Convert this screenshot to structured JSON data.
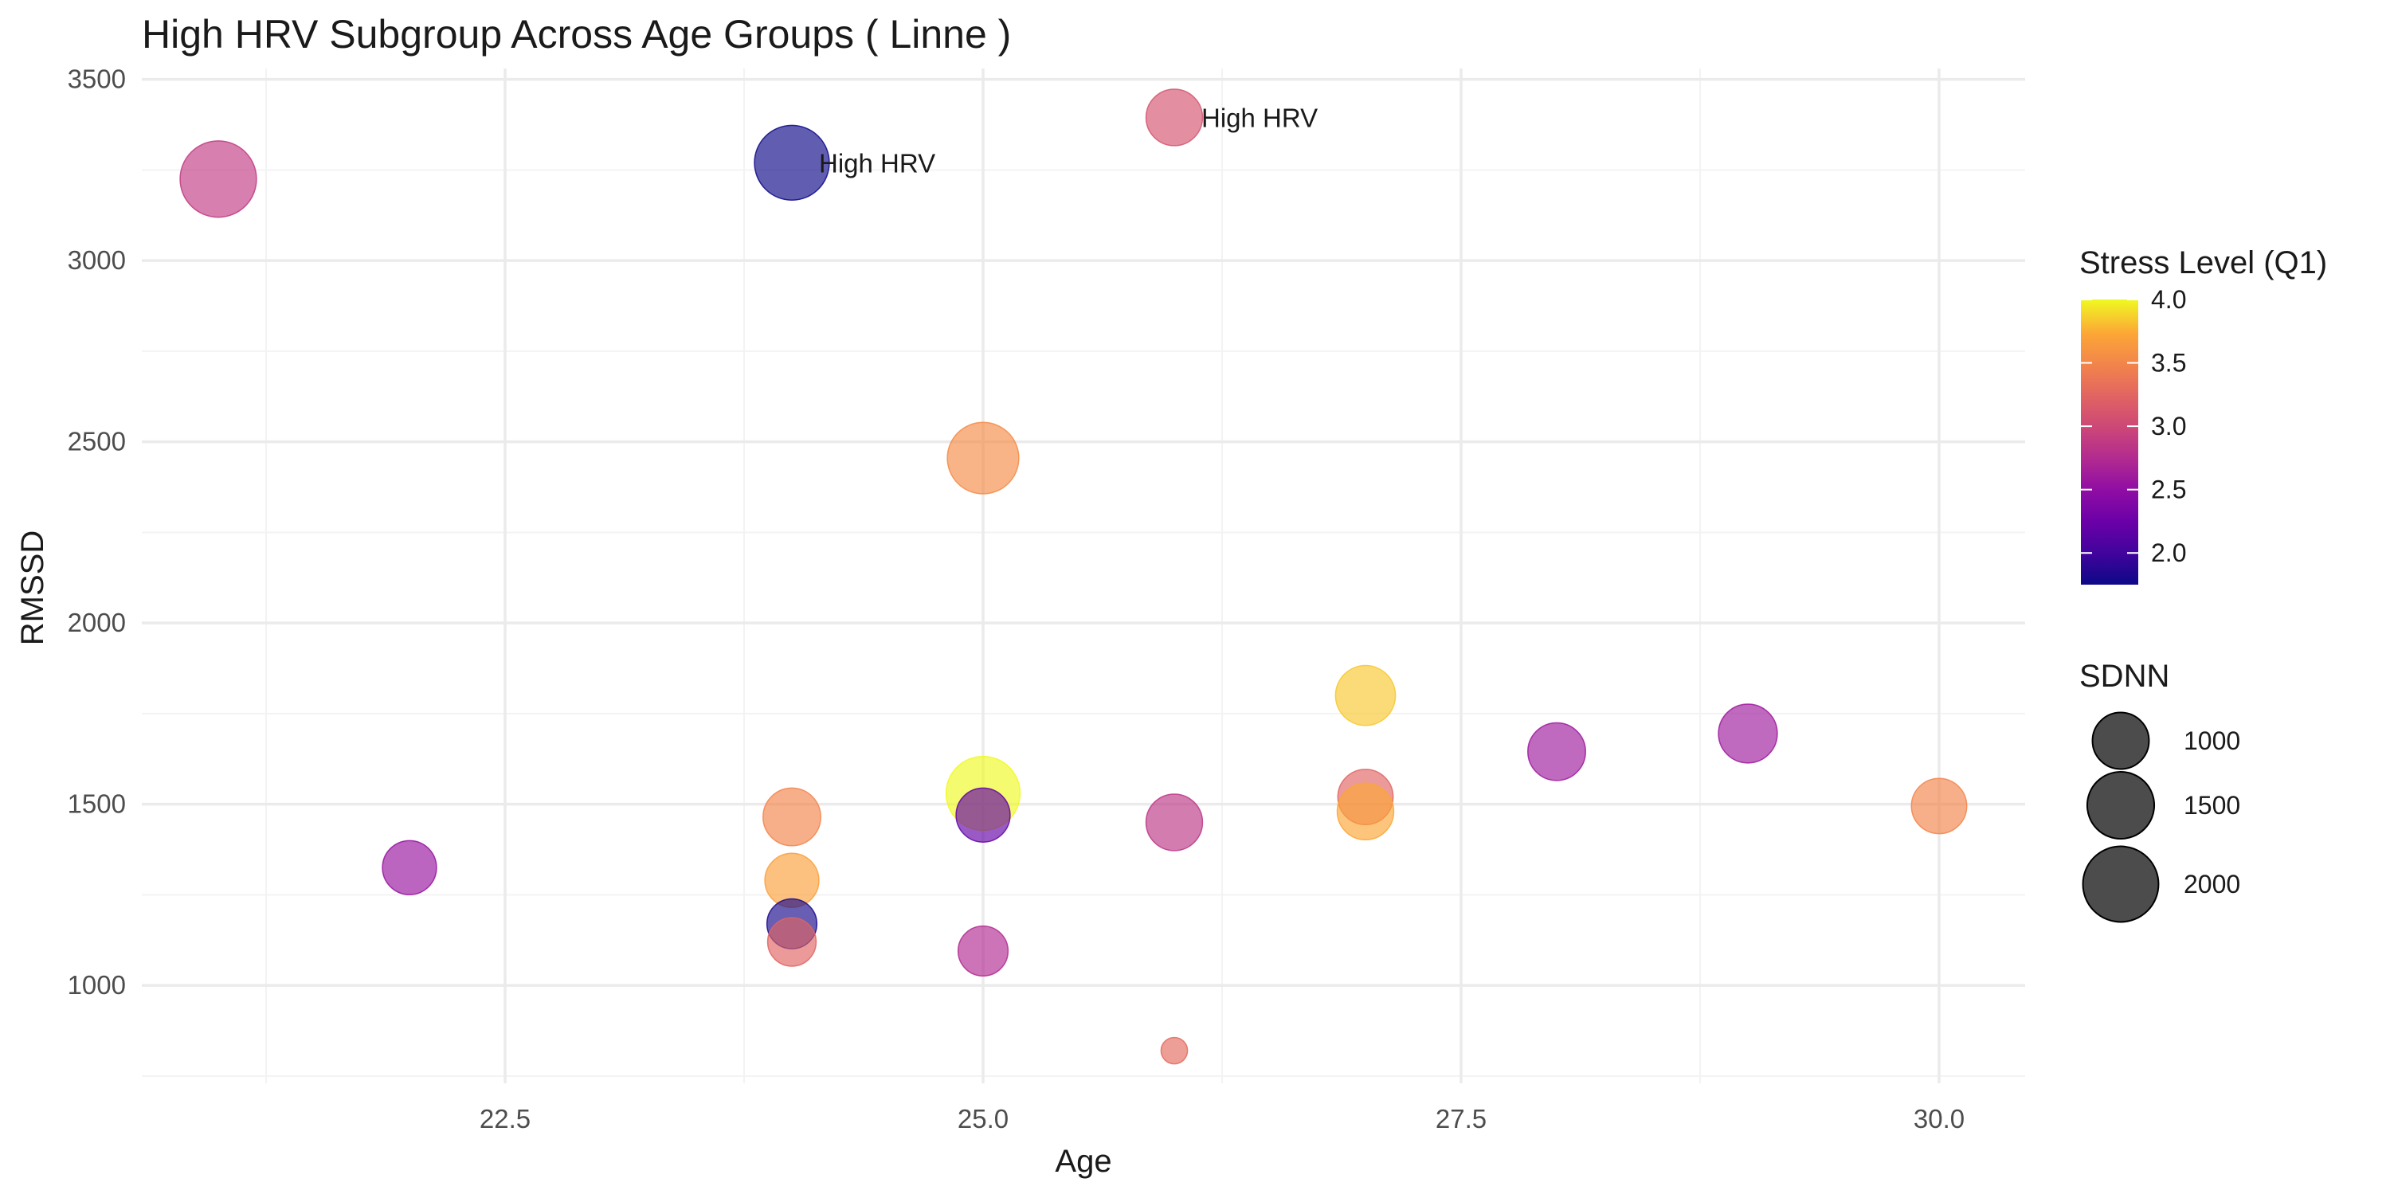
{
  "chart_data": {
    "type": "scatter",
    "title": "High HRV Subgroup Across Age Groups ( Linne )",
    "xlabel": "Age",
    "ylabel": "RMSSD",
    "xlim": [
      20.6,
      30.45
    ],
    "ylim": [
      730,
      3530
    ],
    "x_ticks": [
      22.5,
      25.0,
      27.5,
      30.0
    ],
    "x_tick_labels": [
      "22.5",
      "25.0",
      "27.5",
      "30.0"
    ],
    "y_ticks": [
      1000,
      1500,
      2000,
      2500,
      3000,
      3500
    ],
    "y_tick_labels": [
      "1000",
      "1500",
      "2000",
      "2500",
      "3000",
      "3500"
    ],
    "grid": true,
    "point_alpha": 0.65,
    "color_scale": {
      "title": "Stress Level (Q1)",
      "palette": "plasma",
      "min": 1.75,
      "max": 4.0,
      "breaks": [
        2.0,
        2.5,
        3.0,
        3.5,
        4.0
      ],
      "break_labels": [
        "2.0",
        "2.5",
        "3.0",
        "3.5",
        "4.0"
      ],
      "placement": "right"
    },
    "size_scale": {
      "title": "SDNN",
      "breaks": [
        1000,
        1500,
        2000
      ],
      "break_labels": [
        "1000",
        "1500",
        "2000"
      ],
      "placement": "right"
    },
    "points": [
      {
        "age": 21.0,
        "rmssd": 3225,
        "stress": 2.9,
        "sdnn": 2050
      },
      {
        "age": 22.0,
        "rmssd": 1325,
        "stress": 2.55,
        "sdnn": 900
      },
      {
        "age": 24.0,
        "rmssd": 3270,
        "stress": 1.75,
        "sdnn": 1950
      },
      {
        "age": 24.0,
        "rmssd": 1465,
        "stress": 3.5,
        "sdnn": 1050
      },
      {
        "age": 24.0,
        "rmssd": 1290,
        "stress": 3.7,
        "sdnn": 900
      },
      {
        "age": 24.0,
        "rmssd": 1170,
        "stress": 1.8,
        "sdnn": 750
      },
      {
        "age": 24.0,
        "rmssd": 1120,
        "stress": 3.25,
        "sdnn": 700
      },
      {
        "age": 25.0,
        "rmssd": 2455,
        "stress": 3.55,
        "sdnn": 1750
      },
      {
        "age": 25.0,
        "rmssd": 1530,
        "stress": 4.0,
        "sdnn": 1900
      },
      {
        "age": 25.0,
        "rmssd": 1470,
        "stress": 2.2,
        "sdnn": 900
      },
      {
        "age": 25.0,
        "rmssd": 1095,
        "stress": 2.75,
        "sdnn": 750
      },
      {
        "age": 26.0,
        "rmssd": 3395,
        "stress": 3.1,
        "sdnn": 1000
      },
      {
        "age": 26.0,
        "rmssd": 1450,
        "stress": 2.85,
        "sdnn": 1000
      },
      {
        "age": 26.0,
        "rmssd": 820,
        "stress": 3.3,
        "sdnn": 250
      },
      {
        "age": 27.0,
        "rmssd": 1800,
        "stress": 3.85,
        "sdnn": 1150
      },
      {
        "age": 27.0,
        "rmssd": 1520,
        "stress": 3.25,
        "sdnn": 950
      },
      {
        "age": 27.0,
        "rmssd": 1480,
        "stress": 3.75,
        "sdnn": 1000
      },
      {
        "age": 28.0,
        "rmssd": 1645,
        "stress": 2.6,
        "sdnn": 1050
      },
      {
        "age": 29.0,
        "rmssd": 1695,
        "stress": 2.6,
        "sdnn": 1100
      },
      {
        "age": 30.0,
        "rmssd": 1495,
        "stress": 3.5,
        "sdnn": 950
      }
    ],
    "annotations": [
      {
        "age": 24.0,
        "rmssd": 3270,
        "text": "High HRV"
      },
      {
        "age": 26.0,
        "rmssd": 3395,
        "text": "High HRV"
      }
    ]
  }
}
